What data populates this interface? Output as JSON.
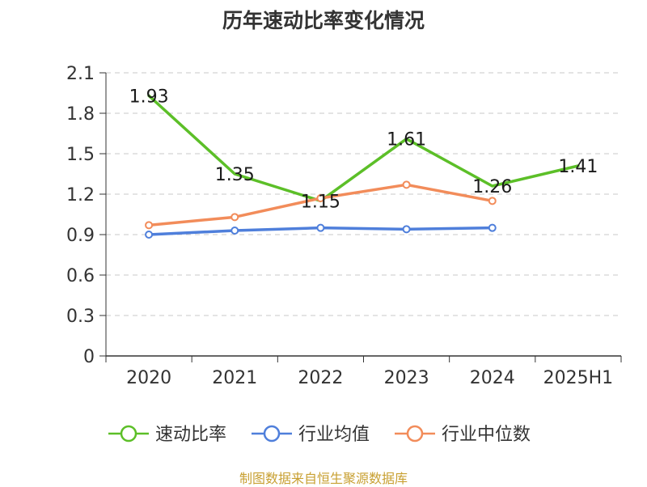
{
  "title": "历年速动比率变化情况",
  "source": "制图数据来自恒生聚源数据库",
  "chart_data": {
    "type": "line",
    "title": "历年速动比率变化情况",
    "xlabel": "",
    "ylabel": "",
    "categories": [
      "2020",
      "2021",
      "2022",
      "2023",
      "2024",
      "2025H1"
    ],
    "ylim": [
      0,
      2.1
    ],
    "yticks": [
      0,
      0.3,
      0.6,
      0.9,
      1.2,
      1.5,
      1.8,
      2.1
    ],
    "ytick_labels": [
      "0",
      "0.3",
      "0.6",
      "0.9",
      "1.2",
      "1.5",
      "1.8",
      "2.1"
    ],
    "grid": true,
    "legend_position": "bottom",
    "series": [
      {
        "name": "速动比率",
        "color": "#5cbf28",
        "values": [
          1.93,
          1.35,
          1.15,
          1.61,
          1.26,
          1.41
        ],
        "labels": [
          "1.93",
          "1.35",
          "1.15",
          "1.61",
          "1.26",
          "1.41"
        ]
      },
      {
        "name": "行业均值",
        "color": "#4f7fdb",
        "values": [
          0.9,
          0.93,
          0.95,
          0.94,
          0.95,
          null
        ]
      },
      {
        "name": "行业中位数",
        "color": "#f28c5a",
        "values": [
          0.97,
          1.03,
          1.17,
          1.27,
          1.15,
          null
        ]
      }
    ]
  }
}
